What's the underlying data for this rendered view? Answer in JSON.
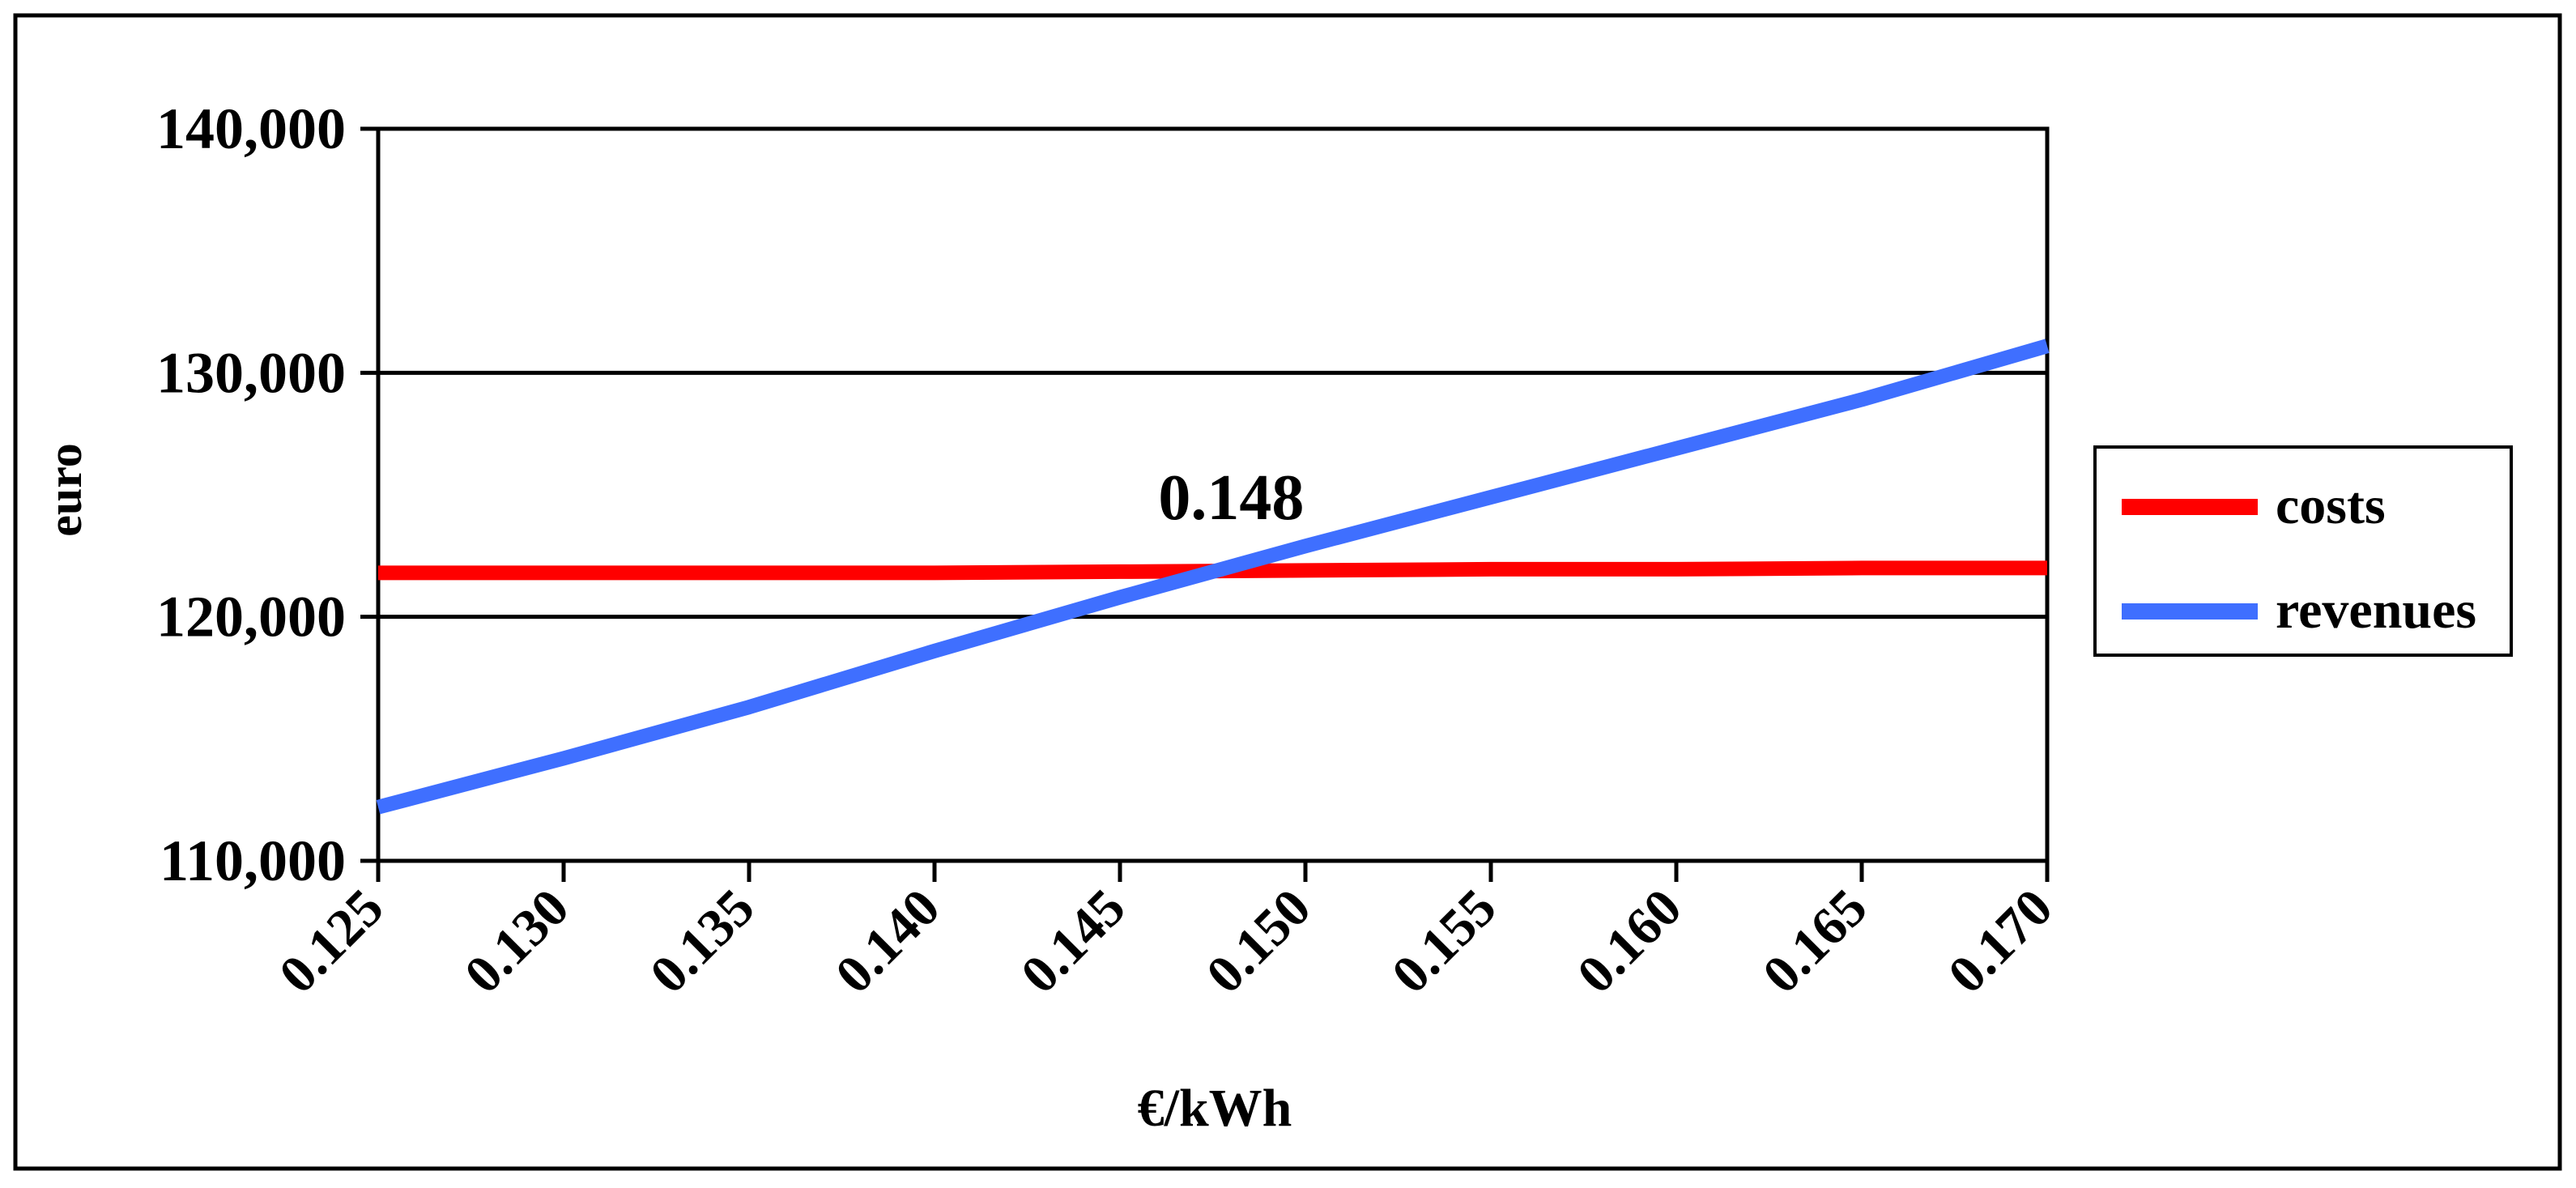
{
  "chart_data": {
    "type": "line",
    "title": "",
    "xlabel": "€/kWh",
    "ylabel": "euro",
    "x": [
      "0.125",
      "0.130",
      "0.135",
      "0.140",
      "0.145",
      "0.150",
      "0.155",
      "0.160",
      "0.165",
      "0.170"
    ],
    "x_values": [
      0.125,
      0.13,
      0.135,
      0.14,
      0.145,
      0.15,
      0.155,
      0.16,
      0.165,
      0.17
    ],
    "ylim": [
      110000,
      140000
    ],
    "yticks": [
      {
        "value": 110000,
        "label": "110,000"
      },
      {
        "value": 120000,
        "label": "120,000"
      },
      {
        "value": 130000,
        "label": "130,000"
      },
      {
        "value": 140000,
        "label": "140,000"
      }
    ],
    "grid": "horizontal major gridlines",
    "legend_position": "right",
    "series": [
      {
        "name": "costs",
        "color": "#ff0000",
        "values": [
          121800,
          121800,
          121800,
          121800,
          121850,
          121900,
          121950,
          121950,
          122000,
          122000
        ]
      },
      {
        "name": "revenues",
        "color": "#3f6fff",
        "values": [
          112200,
          114200,
          116300,
          118600,
          120800,
          122900,
          124900,
          126900,
          128900,
          131100
        ]
      }
    ],
    "annotations": [
      {
        "text": "0.148",
        "x": 0.148,
        "y": 124000
      }
    ]
  }
}
